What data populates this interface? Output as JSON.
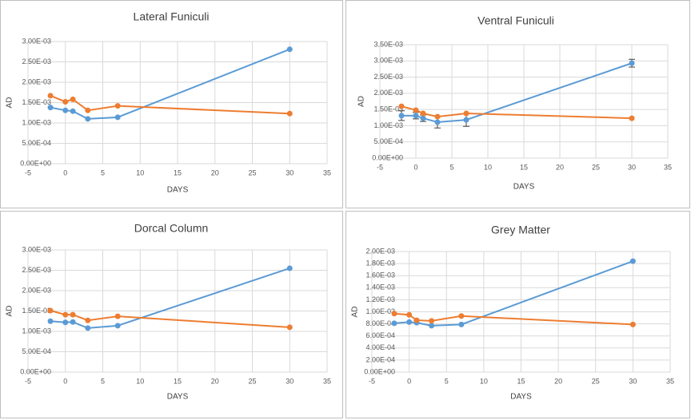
{
  "chart_data": [
    {
      "type": "line",
      "title": "Lateral Funiculi",
      "x_label": "DAYS",
      "y_label": "AD",
      "x": [
        -2,
        0,
        1,
        3,
        7,
        30
      ],
      "series": [
        {
          "color": "#5b9bd5",
          "values": [
            0.00138,
            0.00131,
            0.00129,
            0.0011,
            0.00114,
            0.00281
          ]
        },
        {
          "color": "#ed7d31",
          "values": [
            0.00167,
            0.00152,
            0.00158,
            0.00131,
            0.00142,
            0.00123
          ]
        }
      ],
      "xlim": [
        -5,
        35
      ],
      "xticks": [
        -5,
        0,
        5,
        10,
        15,
        20,
        25,
        30,
        35
      ],
      "ylim": [
        0,
        0.003
      ],
      "yticks": [
        {
          "value": 0,
          "label": "0.00E+00"
        },
        {
          "value": 0.0005,
          "label": "5.00E-04"
        },
        {
          "value": 0.001,
          "label": "1.00E-03"
        },
        {
          "value": 0.0015,
          "label": "1.50E-03"
        },
        {
          "value": 0.002,
          "label": "2.00E-03"
        },
        {
          "value": 0.0025,
          "label": "2.50E-03"
        },
        {
          "value": 0.003,
          "label": "3.00E-03"
        }
      ],
      "grid": true
    },
    {
      "type": "line",
      "title": "Ventral Funiculi",
      "x_label": "DAYS",
      "y_label": "AD",
      "x": [
        -2,
        0,
        1,
        3,
        7,
        30
      ],
      "series": [
        {
          "color": "#5b9bd5",
          "values": [
            0.00131,
            0.00131,
            0.00123,
            0.00111,
            0.00118,
            0.00293
          ],
          "errors": [
            0.00015,
            0.0001,
            0.0001,
            0.00018,
            0.0002,
            0.00012
          ]
        },
        {
          "color": "#ed7d31",
          "values": [
            0.0016,
            0.00148,
            0.00138,
            0.00128,
            0.00138,
            0.00123
          ]
        }
      ],
      "xlim": [
        -5,
        35
      ],
      "xticks": [
        -5,
        0,
        5,
        10,
        15,
        20,
        25,
        30,
        35
      ],
      "ylim": [
        0,
        0.0035
      ],
      "yticks": [
        {
          "value": 0,
          "label": "0.00E+00"
        },
        {
          "value": 0.0005,
          "label": "5.00E-04"
        },
        {
          "value": 0.001,
          "label": "1.00E-03"
        },
        {
          "value": 0.0015,
          "label": "1.50E-03"
        },
        {
          "value": 0.002,
          "label": "2.00E-03"
        },
        {
          "value": 0.0025,
          "label": "2.50E-03"
        },
        {
          "value": 0.003,
          "label": "3.00E-03"
        },
        {
          "value": 0.0035,
          "label": "3.50E-03"
        }
      ],
      "grid": true
    },
    {
      "type": "line",
      "title": "Dorcal Column",
      "x_label": "DAYS",
      "y_label": "AD",
      "x": [
        -2,
        0,
        1,
        3,
        7,
        30
      ],
      "series": [
        {
          "color": "#5b9bd5",
          "values": [
            0.00125,
            0.00122,
            0.00123,
            0.00108,
            0.00114,
            0.00255
          ]
        },
        {
          "color": "#ed7d31",
          "values": [
            0.00151,
            0.00141,
            0.00141,
            0.00127,
            0.00137,
            0.0011
          ]
        }
      ],
      "xlim": [
        -5,
        35
      ],
      "xticks": [
        -5,
        0,
        5,
        10,
        15,
        20,
        25,
        30,
        35
      ],
      "ylim": [
        0,
        0.003
      ],
      "yticks": [
        {
          "value": 0,
          "label": "0.00E+00"
        },
        {
          "value": 0.0005,
          "label": "5.00E-04"
        },
        {
          "value": 0.001,
          "label": "1.00E-03"
        },
        {
          "value": 0.0015,
          "label": "1.50E-03"
        },
        {
          "value": 0.002,
          "label": "2.00E-03"
        },
        {
          "value": 0.0025,
          "label": "2.50E-03"
        },
        {
          "value": 0.003,
          "label": "3.00E-03"
        }
      ],
      "grid": true
    },
    {
      "type": "line",
      "title": "Grey Matter",
      "x_label": "DAYS",
      "y_label": "AD",
      "x": [
        -2,
        0,
        1,
        3,
        7,
        30
      ],
      "series": [
        {
          "color": "#5b9bd5",
          "values": [
            0.00081,
            0.00083,
            0.00082,
            0.00077,
            0.00079,
            0.00184
          ]
        },
        {
          "color": "#ed7d31",
          "values": [
            0.00097,
            0.00095,
            0.00086,
            0.00085,
            0.00093,
            0.00079
          ]
        }
      ],
      "xlim": [
        -5,
        35
      ],
      "xticks": [
        -5,
        0,
        5,
        10,
        15,
        20,
        25,
        30,
        35
      ],
      "ylim": [
        0,
        0.002
      ],
      "yticks": [
        {
          "value": 0,
          "label": "0.00E+00"
        },
        {
          "value": 0.0002,
          "label": "2.00E-04"
        },
        {
          "value": 0.0004,
          "label": "4.00E-04"
        },
        {
          "value": 0.0006,
          "label": "6.00E-04"
        },
        {
          "value": 0.0008,
          "label": "8.00E-04"
        },
        {
          "value": 0.001,
          "label": "1.00E-03"
        },
        {
          "value": 0.0012,
          "label": "1.20E-03"
        },
        {
          "value": 0.0014,
          "label": "1.40E-03"
        },
        {
          "value": 0.0016,
          "label": "1.60E-03"
        },
        {
          "value": 0.0018,
          "label": "1.80E-03"
        },
        {
          "value": 0.002,
          "label": "2.00E-03"
        }
      ],
      "grid": true
    }
  ]
}
